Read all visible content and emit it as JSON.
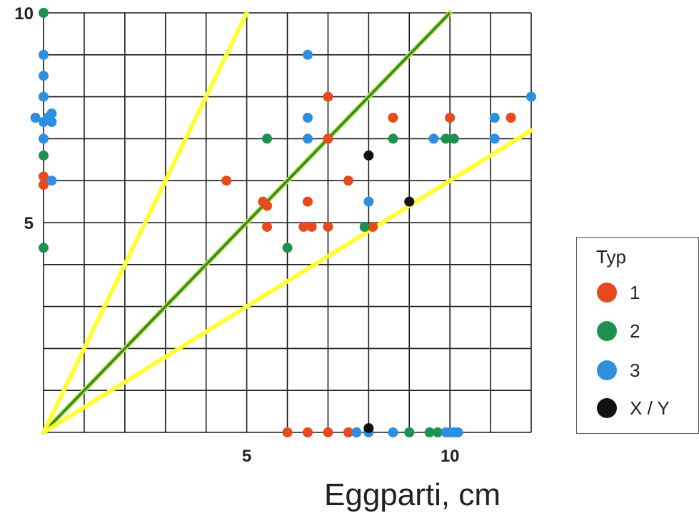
{
  "chart_data": {
    "type": "scatter",
    "xlabel": "Eggparti, cm",
    "ylabel": "",
    "xlim": [
      0,
      12
    ],
    "ylim": [
      0,
      10
    ],
    "x_ticks": [
      {
        "value": 5,
        "label": "5"
      },
      {
        "value": 10,
        "label": "10"
      }
    ],
    "y_ticks": [
      {
        "value": 5,
        "label": "5"
      },
      {
        "value": 10,
        "label": "10"
      }
    ],
    "grid": true,
    "reference_lines": [
      {
        "slope": 1,
        "color": "#2e8b2e"
      },
      {
        "slope": 2,
        "color": "#ffff33"
      },
      {
        "slope": 0.6,
        "color": "#ffff33"
      }
    ],
    "legend": {
      "title": "Typ",
      "placement": "right",
      "entries": [
        {
          "label": "1",
          "color": "#e8491d"
        },
        {
          "label": "2",
          "color": "#1e9150"
        },
        {
          "label": "3",
          "color": "#2d8fe0"
        },
        {
          "label": "X / Y",
          "color": "#111111"
        }
      ]
    },
    "series": [
      {
        "name": "1",
        "color": "#e8491d",
        "points": [
          [
            7,
            8
          ],
          [
            8.6,
            7.5
          ],
          [
            10,
            7.5
          ],
          [
            11.5,
            7.5
          ],
          [
            7,
            7
          ],
          [
            4.5,
            6
          ],
          [
            7.5,
            6
          ],
          [
            5.4,
            5.5
          ],
          [
            5.5,
            5.4
          ],
          [
            6.5,
            5.5
          ],
          [
            5.5,
            4.9
          ],
          [
            6.4,
            4.9
          ],
          [
            6.6,
            4.9
          ],
          [
            7,
            4.9
          ],
          [
            8.1,
            4.9
          ],
          [
            0,
            6.1
          ],
          [
            0,
            5.9
          ],
          [
            6,
            0
          ],
          [
            6.5,
            0
          ],
          [
            7,
            0
          ],
          [
            7.5,
            0
          ],
          [
            7.7,
            0
          ]
        ]
      },
      {
        "name": "2",
        "color": "#1e9150",
        "points": [
          [
            0,
            10
          ],
          [
            0,
            6.6
          ],
          [
            0,
            4.4
          ],
          [
            5.5,
            7
          ],
          [
            8.6,
            7
          ],
          [
            9.9,
            7
          ],
          [
            10.1,
            7
          ],
          [
            6,
            4.4
          ],
          [
            7.9,
            4.9
          ],
          [
            9,
            0
          ],
          [
            9.5,
            0
          ],
          [
            9.7,
            0
          ]
        ]
      },
      {
        "name": "3",
        "color": "#2d8fe0",
        "points": [
          [
            0,
            9
          ],
          [
            0,
            8.5
          ],
          [
            0,
            8
          ],
          [
            -0.2,
            7.5
          ],
          [
            0,
            7.4
          ],
          [
            0.1,
            7.5
          ],
          [
            0.2,
            7.6
          ],
          [
            0.2,
            7.4
          ],
          [
            0,
            7
          ],
          [
            0.2,
            6
          ],
          [
            6.5,
            9
          ],
          [
            6.5,
            7.5
          ],
          [
            6.5,
            7
          ],
          [
            9.6,
            7
          ],
          [
            11.1,
            7
          ],
          [
            11.1,
            7.5
          ],
          [
            12,
            8
          ],
          [
            8,
            5.5
          ],
          [
            7.7,
            0
          ],
          [
            8,
            0
          ],
          [
            8.6,
            0
          ],
          [
            9.9,
            0
          ],
          [
            10,
            0
          ],
          [
            10.1,
            0
          ],
          [
            10.2,
            0
          ]
        ]
      },
      {
        "name": "X / Y",
        "color": "#111111",
        "points": [
          [
            8,
            6.6
          ],
          [
            9,
            5.5
          ],
          [
            8,
            0.1
          ]
        ]
      }
    ]
  }
}
